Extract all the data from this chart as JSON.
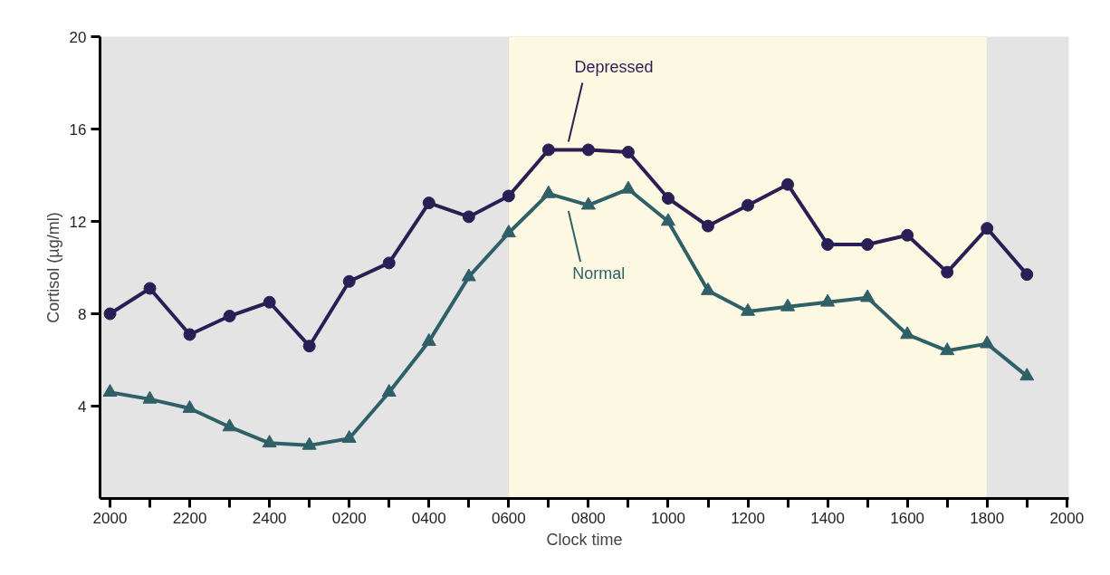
{
  "chart_data": {
    "type": "line",
    "xlabel": "Clock time",
    "ylabel": "Cortisol (µg/ml)",
    "categories": [
      "2000",
      null,
      "2200",
      null,
      "2400",
      null,
      "0200",
      null,
      "0400",
      null,
      "0600",
      null,
      "0800",
      null,
      "1000",
      null,
      "1200",
      null,
      "1400",
      null,
      "1600",
      null,
      "1800",
      null,
      "2000"
    ],
    "series": [
      {
        "name": "Depressed",
        "color": "#2a1f55",
        "marker": "circle",
        "values": [
          8.0,
          9.1,
          7.1,
          7.9,
          8.5,
          6.6,
          9.4,
          10.2,
          12.8,
          12.2,
          13.1,
          15.1,
          15.1,
          15.0,
          13.0,
          11.8,
          12.7,
          13.6,
          11.0,
          11.0,
          11.4,
          9.8,
          11.7,
          9.7,
          null
        ]
      },
      {
        "name": "Normal",
        "color": "#2f6068",
        "marker": "triangle",
        "values": [
          4.6,
          4.3,
          3.9,
          3.1,
          2.4,
          2.3,
          2.6,
          4.6,
          6.8,
          9.6,
          11.5,
          13.2,
          12.7,
          13.4,
          12.0,
          9.0,
          8.1,
          8.3,
          8.5,
          8.7,
          7.1,
          6.4,
          6.7,
          5.3,
          null
        ]
      }
    ],
    "ylim": [
      0,
      20
    ],
    "yticks": [
      4,
      8,
      12,
      16,
      20
    ],
    "bands": [
      {
        "axis": "x",
        "from": "0600",
        "to": "1800",
        "color": "#fdf8e1"
      }
    ],
    "line_style": "solid"
  }
}
